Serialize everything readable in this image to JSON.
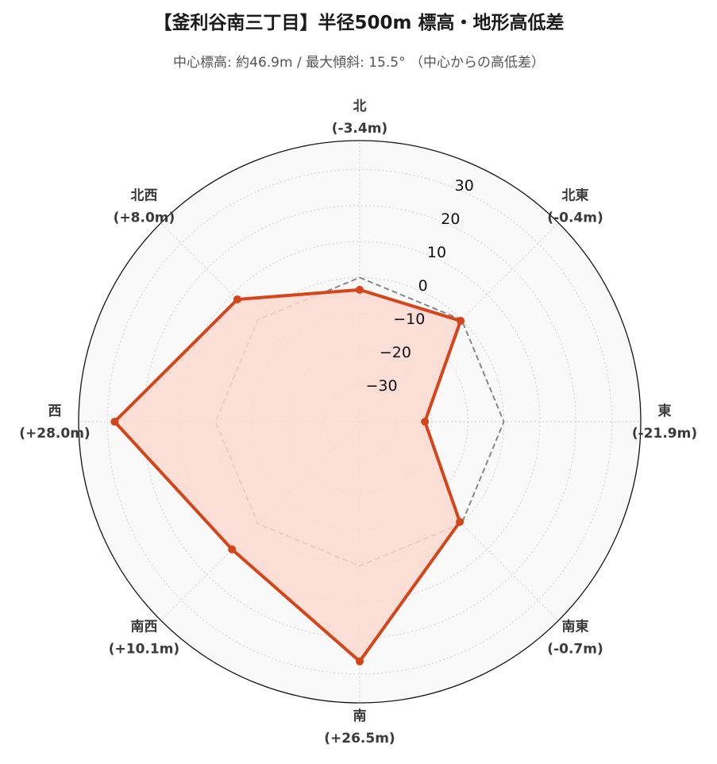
{
  "chart_data": {
    "type": "radar",
    "title": "【釜利谷南三丁目】半径500m 標高・地形高低差",
    "subtitle": "中心標高: 約46.9m / 最大傾斜: 15.5° （中心からの高低差）",
    "directions": [
      "北",
      "北東",
      "東",
      "南東",
      "南",
      "南西",
      "西",
      "北西"
    ],
    "direction_values_text": [
      "(-3.4m)",
      "(-0.4m)",
      "(-21.9m)",
      "(-0.7m)",
      "(+26.5m)",
      "(+10.1m)",
      "(+28.0m)",
      "(+8.0m)"
    ],
    "series": [
      {
        "values": [
          -3.4,
          -0.4,
          -21.9,
          -0.7,
          26.5,
          10.1,
          28.0,
          8.0
        ]
      },
      {
        "values": [
          0,
          0,
          0,
          0,
          0,
          0,
          0,
          0
        ]
      }
    ],
    "rlim": [
      -40,
      38
    ],
    "rticks": [
      -30,
      -20,
      -10,
      0,
      10,
      20,
      30
    ],
    "rtick_labels": [
      "−30",
      "−20",
      "−10",
      "0",
      "10",
      "20",
      "30"
    ],
    "grid": true,
    "colors": {
      "series": "#d4451a",
      "fill": "#fcd9d0",
      "reference": "#888888",
      "background": "#f9f9f9"
    }
  }
}
